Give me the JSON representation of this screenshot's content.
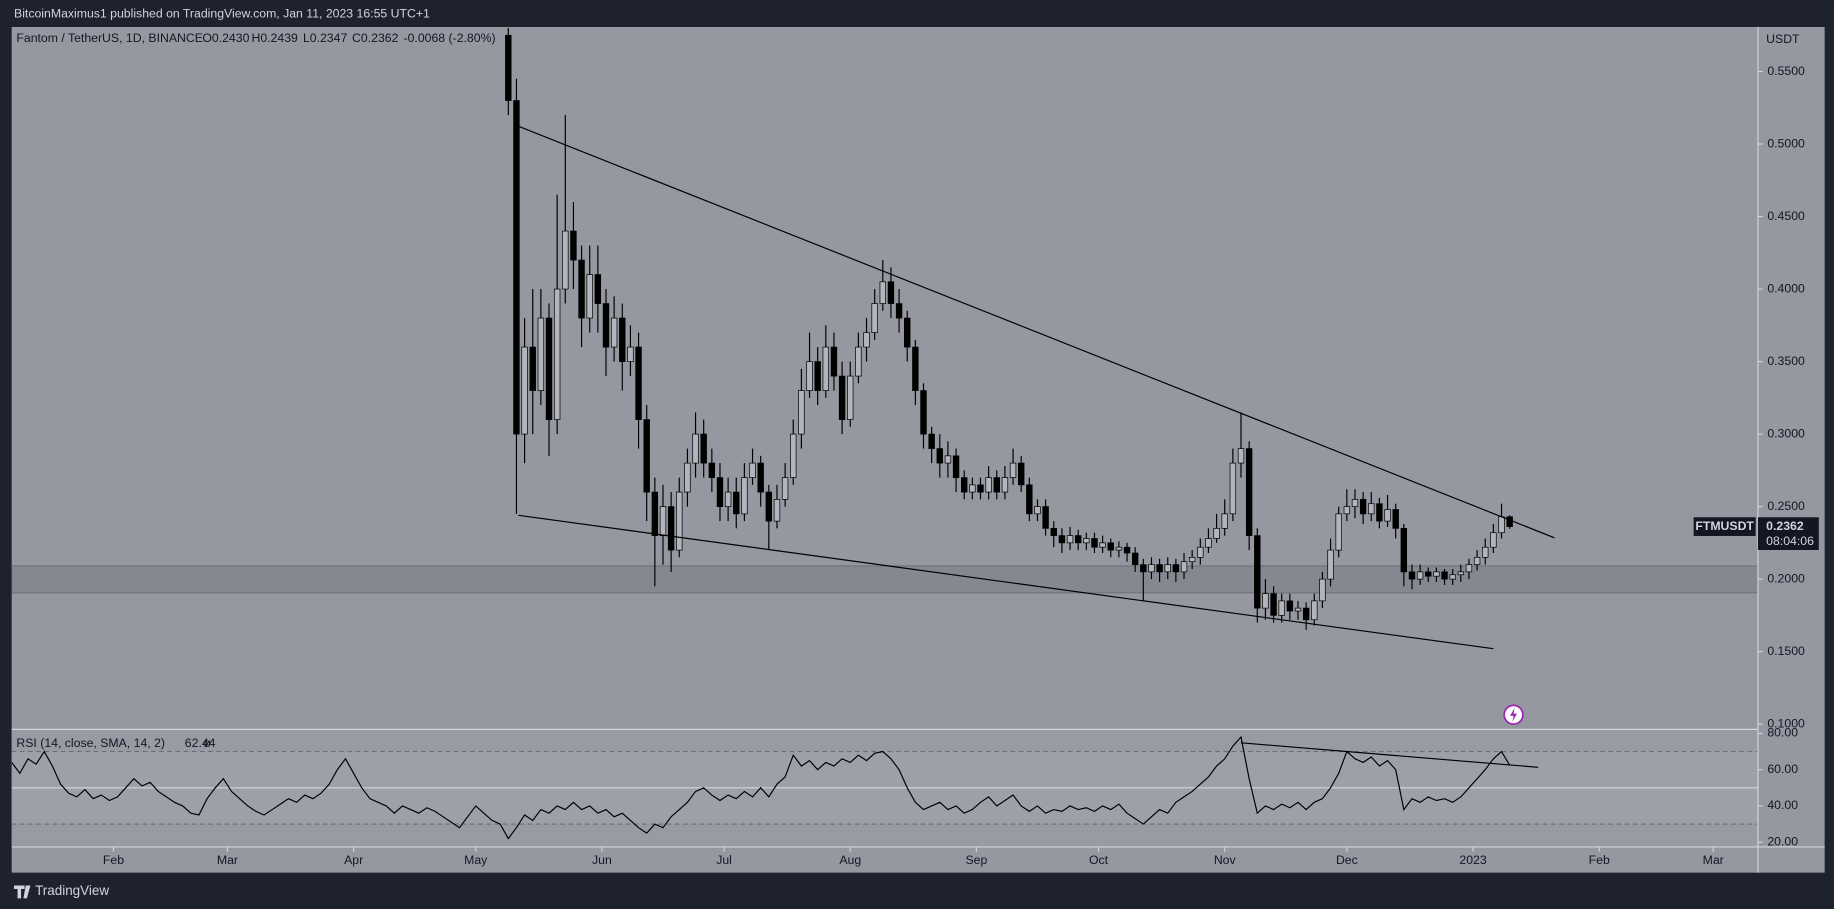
{
  "header": {
    "publisher": "BitcoinMaximus1 published on TradingView.com, Jan 11, 2023 16:55 UTC+1"
  },
  "footer": {
    "brand": "TradingView"
  },
  "chart_data": [
    {
      "type": "candlestick",
      "title": "Fantom / TetherUS, 1D, BINANCE",
      "ohlc_labels": [
        "O0.2430",
        "H0.2439",
        "L0.2347",
        "C0.2362"
      ],
      "change": "-0.0068 (-2.80%)",
      "y_unit": "USDT",
      "symbol": "FTMUSDT",
      "last_price": 0.2362,
      "countdown": "08:04:06",
      "up_color": "#b2b5be",
      "down_color": "#000000",
      "wick_color": "#000000",
      "xlim": [
        6,
        435
      ],
      "ylim": [
        0.0968,
        0.5807
      ],
      "yticks": [
        {
          "value": 0.55,
          "label": "0.5500"
        },
        {
          "value": 0.5,
          "label": "0.5000"
        },
        {
          "value": 0.45,
          "label": "0.4500"
        },
        {
          "value": 0.4,
          "label": "0.4000"
        },
        {
          "value": 0.35,
          "label": "0.3500"
        },
        {
          "value": 0.3,
          "label": "0.3000"
        },
        {
          "value": 0.25,
          "label": "0.2500"
        },
        {
          "value": 0.2,
          "label": "0.2000"
        },
        {
          "value": 0.15,
          "label": "0.1500"
        },
        {
          "value": 0.1,
          "label": "0.1000"
        }
      ],
      "x": [
        128,
        130,
        132,
        134,
        136,
        138,
        140,
        142,
        144,
        146,
        148,
        150,
        152,
        154,
        156,
        158,
        160,
        162,
        164,
        166,
        168,
        170,
        172,
        174,
        176,
        178,
        180,
        182,
        184,
        186,
        188,
        190,
        192,
        194,
        196,
        198,
        200,
        202,
        204,
        206,
        208,
        210,
        212,
        214,
        216,
        218,
        220,
        222,
        224,
        226,
        228,
        230,
        232,
        234,
        236,
        238,
        240,
        242,
        244,
        246,
        248,
        250,
        252,
        254,
        256,
        258,
        260,
        262,
        264,
        266,
        268,
        270,
        272,
        274,
        276,
        278,
        280,
        282,
        284,
        286,
        288,
        290,
        292,
        294,
        296,
        298,
        300,
        302,
        304,
        306,
        308,
        310,
        312,
        314,
        316,
        318,
        320,
        322,
        324,
        326,
        328,
        330,
        332,
        334,
        336,
        338,
        340,
        342,
        344,
        346,
        348,
        350,
        352,
        354,
        356,
        358,
        360,
        362,
        364,
        366,
        368,
        370,
        372,
        374
      ],
      "open": [
        0.575,
        0.53,
        0.3,
        0.36,
        0.33,
        0.38,
        0.31,
        0.4,
        0.44,
        0.42,
        0.38,
        0.41,
        0.39,
        0.36,
        0.38,
        0.35,
        0.36,
        0.31,
        0.26,
        0.23,
        0.25,
        0.22,
        0.26,
        0.28,
        0.3,
        0.28,
        0.27,
        0.25,
        0.26,
        0.245,
        0.27,
        0.28,
        0.26,
        0.24,
        0.255,
        0.27,
        0.3,
        0.33,
        0.35,
        0.33,
        0.36,
        0.34,
        0.31,
        0.34,
        0.36,
        0.37,
        0.39,
        0.405,
        0.39,
        0.38,
        0.36,
        0.33,
        0.3,
        0.29,
        0.28,
        0.285,
        0.27,
        0.26,
        0.265,
        0.26,
        0.27,
        0.26,
        0.27,
        0.28,
        0.265,
        0.245,
        0.25,
        0.235,
        0.23,
        0.225,
        0.23,
        0.225,
        0.228,
        0.222,
        0.225,
        0.22,
        0.222,
        0.218,
        0.21,
        0.205,
        0.21,
        0.205,
        0.21,
        0.205,
        0.212,
        0.215,
        0.222,
        0.228,
        0.235,
        0.245,
        0.28,
        0.29,
        0.23,
        0.18,
        0.19,
        0.175,
        0.185,
        0.178,
        0.18,
        0.172,
        0.185,
        0.2,
        0.22,
        0.245,
        0.25,
        0.255,
        0.245,
        0.252,
        0.24,
        0.248,
        0.235,
        0.205,
        0.2,
        0.205,
        0.202,
        0.205,
        0.2,
        0.203,
        0.205,
        0.21,
        0.215,
        0.222,
        0.232,
        0.243
      ],
      "high": [
        0.58,
        0.545,
        0.38,
        0.4,
        0.4,
        0.39,
        0.465,
        0.52,
        0.46,
        0.43,
        0.43,
        0.43,
        0.4,
        0.395,
        0.39,
        0.375,
        0.37,
        0.32,
        0.27,
        0.265,
        0.26,
        0.27,
        0.29,
        0.315,
        0.31,
        0.29,
        0.28,
        0.27,
        0.27,
        0.28,
        0.29,
        0.285,
        0.265,
        0.265,
        0.28,
        0.31,
        0.345,
        0.37,
        0.36,
        0.375,
        0.37,
        0.35,
        0.35,
        0.37,
        0.38,
        0.4,
        0.42,
        0.415,
        0.4,
        0.385,
        0.365,
        0.335,
        0.305,
        0.3,
        0.295,
        0.29,
        0.275,
        0.27,
        0.27,
        0.278,
        0.275,
        0.278,
        0.29,
        0.285,
        0.27,
        0.255,
        0.255,
        0.24,
        0.235,
        0.236,
        0.234,
        0.232,
        0.232,
        0.23,
        0.228,
        0.226,
        0.225,
        0.222,
        0.214,
        0.215,
        0.214,
        0.215,
        0.214,
        0.218,
        0.22,
        0.228,
        0.235,
        0.245,
        0.255,
        0.29,
        0.315,
        0.295,
        0.235,
        0.2,
        0.195,
        0.19,
        0.19,
        0.185,
        0.184,
        0.19,
        0.205,
        0.228,
        0.25,
        0.262,
        0.262,
        0.26,
        0.26,
        0.256,
        0.258,
        0.252,
        0.238,
        0.21,
        0.21,
        0.208,
        0.208,
        0.207,
        0.207,
        0.21,
        0.214,
        0.22,
        0.228,
        0.238,
        0.252,
        0.2439
      ],
      "low": [
        0.52,
        0.245,
        0.28,
        0.3,
        0.32,
        0.285,
        0.3,
        0.39,
        0.4,
        0.36,
        0.37,
        0.37,
        0.34,
        0.35,
        0.33,
        0.34,
        0.29,
        0.24,
        0.195,
        0.21,
        0.205,
        0.215,
        0.25,
        0.27,
        0.27,
        0.26,
        0.24,
        0.24,
        0.235,
        0.24,
        0.265,
        0.25,
        0.22,
        0.235,
        0.25,
        0.265,
        0.29,
        0.325,
        0.32,
        0.325,
        0.33,
        0.3,
        0.305,
        0.335,
        0.35,
        0.365,
        0.385,
        0.38,
        0.37,
        0.35,
        0.32,
        0.29,
        0.28,
        0.27,
        0.27,
        0.26,
        0.255,
        0.255,
        0.255,
        0.255,
        0.255,
        0.255,
        0.265,
        0.26,
        0.24,
        0.24,
        0.23,
        0.222,
        0.218,
        0.22,
        0.22,
        0.22,
        0.218,
        0.218,
        0.215,
        0.215,
        0.212,
        0.205,
        0.185,
        0.2,
        0.198,
        0.2,
        0.198,
        0.2,
        0.207,
        0.21,
        0.218,
        0.225,
        0.23,
        0.24,
        0.27,
        0.22,
        0.17,
        0.172,
        0.17,
        0.17,
        0.172,
        0.172,
        0.165,
        0.168,
        0.18,
        0.195,
        0.215,
        0.24,
        0.242,
        0.238,
        0.24,
        0.235,
        0.236,
        0.228,
        0.195,
        0.193,
        0.196,
        0.198,
        0.198,
        0.196,
        0.196,
        0.198,
        0.2,
        0.206,
        0.21,
        0.218,
        0.228,
        0.2347
      ],
      "close": [
        0.53,
        0.3,
        0.36,
        0.33,
        0.38,
        0.31,
        0.4,
        0.44,
        0.42,
        0.38,
        0.41,
        0.39,
        0.36,
        0.38,
        0.35,
        0.36,
        0.31,
        0.26,
        0.23,
        0.25,
        0.22,
        0.26,
        0.28,
        0.3,
        0.28,
        0.27,
        0.25,
        0.26,
        0.245,
        0.27,
        0.28,
        0.26,
        0.24,
        0.255,
        0.27,
        0.3,
        0.33,
        0.35,
        0.33,
        0.36,
        0.34,
        0.31,
        0.34,
        0.36,
        0.37,
        0.39,
        0.405,
        0.39,
        0.38,
        0.36,
        0.33,
        0.3,
        0.29,
        0.28,
        0.285,
        0.27,
        0.26,
        0.265,
        0.26,
        0.27,
        0.26,
        0.27,
        0.28,
        0.265,
        0.245,
        0.25,
        0.235,
        0.23,
        0.225,
        0.23,
        0.225,
        0.228,
        0.222,
        0.225,
        0.22,
        0.222,
        0.218,
        0.21,
        0.205,
        0.21,
        0.205,
        0.21,
        0.205,
        0.212,
        0.215,
        0.222,
        0.228,
        0.235,
        0.245,
        0.28,
        0.29,
        0.23,
        0.18,
        0.19,
        0.175,
        0.185,
        0.178,
        0.18,
        0.172,
        0.185,
        0.2,
        0.22,
        0.245,
        0.25,
        0.255,
        0.245,
        0.252,
        0.24,
        0.248,
        0.235,
        0.205,
        0.2,
        0.205,
        0.202,
        0.205,
        0.2,
        0.203,
        0.205,
        0.21,
        0.215,
        0.222,
        0.232,
        0.243,
        0.2362
      ],
      "zone": [
        0.1905,
        0.2091
      ],
      "drawings": [
        {
          "x": [
            130,
            385
          ],
          "y": [
            0.5128,
            0.2285
          ]
        },
        {
          "x": [
            130.5,
            370
          ],
          "y": [
            0.244,
            0.152
          ]
        }
      ]
    },
    {
      "type": "line",
      "title": "RSI (14, close, SMA, 14, 2)",
      "value_label": "62.44",
      "icon": "ø",
      "color": "#000000",
      "xlim": [
        6,
        435
      ],
      "ylim": [
        17.4,
        81.9
      ],
      "yticks": [
        {
          "value": 80,
          "label": "80.00"
        },
        {
          "value": 60,
          "label": "60.00"
        },
        {
          "value": 40,
          "label": "40.00"
        },
        {
          "value": 20,
          "label": "20.00"
        }
      ],
      "xticks": [
        {
          "value": 31,
          "label": "Feb"
        },
        {
          "value": 59,
          "label": "Mar"
        },
        {
          "value": 90,
          "label": "Apr"
        },
        {
          "value": 120,
          "label": "May"
        },
        {
          "value": 151,
          "label": "Jun"
        },
        {
          "value": 181,
          "label": "Jul"
        },
        {
          "value": 212,
          "label": "Aug"
        },
        {
          "value": 243,
          "label": "Sep"
        },
        {
          "value": 273,
          "label": "Oct"
        },
        {
          "value": 304,
          "label": "Nov"
        },
        {
          "value": 334,
          "label": "Dec"
        },
        {
          "value": 365,
          "label": "2023"
        },
        {
          "value": 396,
          "label": "Feb"
        },
        {
          "value": 424,
          "label": "Mar"
        }
      ],
      "bands": [
        30,
        70
      ],
      "midline": 50,
      "x": [
        6,
        8,
        10,
        12,
        14,
        16,
        18,
        20,
        22,
        24,
        26,
        28,
        30,
        32,
        34,
        36,
        38,
        40,
        42,
        44,
        46,
        48,
        50,
        52,
        54,
        56,
        58,
        60,
        62,
        64,
        66,
        68,
        70,
        72,
        74,
        76,
        78,
        80,
        82,
        84,
        86,
        88,
        90,
        92,
        94,
        96,
        98,
        100,
        102,
        104,
        106,
        108,
        110,
        112,
        114,
        116,
        118,
        120,
        122,
        124,
        126,
        128,
        130,
        132,
        134,
        136,
        138,
        140,
        142,
        144,
        146,
        148,
        150,
        152,
        154,
        156,
        158,
        160,
        162,
        164,
        166,
        168,
        170,
        172,
        174,
        176,
        178,
        180,
        182,
        184,
        186,
        188,
        190,
        192,
        194,
        196,
        198,
        200,
        202,
        204,
        206,
        208,
        210,
        212,
        214,
        216,
        218,
        220,
        222,
        224,
        226,
        228,
        230,
        232,
        234,
        236,
        238,
        240,
        242,
        244,
        246,
        248,
        250,
        252,
        254,
        256,
        258,
        260,
        262,
        264,
        266,
        268,
        270,
        272,
        274,
        276,
        278,
        280,
        282,
        284,
        286,
        288,
        290,
        292,
        294,
        296,
        298,
        300,
        302,
        304,
        306,
        308,
        310,
        312,
        314,
        316,
        318,
        320,
        322,
        324,
        326,
        328,
        330,
        332,
        334,
        336,
        338,
        340,
        342,
        344,
        346,
        348,
        350,
        352,
        354,
        356,
        358,
        360,
        362,
        364,
        366,
        368,
        370,
        372,
        374
      ],
      "values": [
        64,
        58,
        66,
        63,
        70,
        62,
        52,
        47,
        45,
        49,
        44,
        46,
        43,
        45,
        50,
        55,
        51,
        53,
        48,
        45,
        42,
        40,
        36,
        35,
        44,
        50,
        55,
        48,
        44,
        40,
        37,
        35,
        38,
        41,
        44,
        42,
        46,
        44,
        47,
        52,
        60,
        66,
        58,
        50,
        44,
        42,
        40,
        36,
        40,
        38,
        36,
        39,
        37,
        34,
        31,
        28,
        34,
        40,
        36,
        32,
        30,
        22,
        28,
        35,
        32,
        38,
        36,
        40,
        38,
        42,
        38,
        40,
        36,
        38,
        34,
        36,
        32,
        28,
        25,
        30,
        28,
        34,
        38,
        42,
        48,
        50,
        46,
        43,
        46,
        44,
        48,
        45,
        50,
        45,
        52,
        56,
        68,
        62,
        65,
        60,
        64,
        62,
        66,
        64,
        68,
        65,
        69,
        70,
        66,
        60,
        50,
        42,
        38,
        40,
        42,
        38,
        40,
        36,
        38,
        42,
        45,
        40,
        43,
        46,
        40,
        37,
        40,
        36,
        38,
        37,
        40,
        38,
        39,
        37,
        40,
        38,
        41,
        36,
        33,
        30,
        34,
        38,
        36,
        42,
        45,
        48,
        52,
        56,
        62,
        66,
        73,
        78,
        55,
        36,
        40,
        38,
        41,
        39,
        42,
        38,
        42,
        44,
        50,
        58,
        70,
        66,
        64,
        67,
        62,
        65,
        60,
        38,
        44,
        42,
        45,
        43,
        44,
        42,
        45,
        50,
        55,
        60,
        66,
        70,
        62.44
      ],
      "drawings": [
        {
          "x": [
            308,
            381
          ],
          "y": [
            74.8,
            61.3
          ]
        }
      ]
    }
  ]
}
